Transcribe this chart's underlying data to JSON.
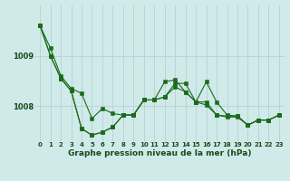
{
  "background_color": "#d0eaea",
  "grid_color": "#b8d4d4",
  "line_color": "#1a6b1a",
  "marker_color": "#1a6b1a",
  "xlabel": "Graphe pression niveau de la mer (hPa)",
  "xlim": [
    -0.5,
    23.5
  ],
  "ylim": [
    1007.3,
    1010.0
  ],
  "yticks": [
    1008.0,
    1009.0
  ],
  "xticks": [
    0,
    1,
    2,
    3,
    4,
    5,
    6,
    7,
    8,
    9,
    10,
    11,
    12,
    13,
    14,
    15,
    16,
    17,
    18,
    19,
    20,
    21,
    22,
    23
  ],
  "series": [
    [
      1009.6,
      1009.15,
      1008.6,
      1008.35,
      1008.25,
      1007.75,
      1007.95,
      1007.85,
      1007.82,
      1007.82,
      1008.12,
      1008.12,
      1008.18,
      1008.45,
      1008.45,
      1008.08,
      1008.02,
      1007.82,
      1007.78,
      1007.78,
      1007.62,
      1007.72,
      1007.72,
      1007.82
    ],
    [
      1009.6,
      1009.0,
      1008.55,
      1008.3,
      1007.55,
      1007.42,
      1007.48,
      1007.58,
      1007.82,
      1007.82,
      1008.12,
      1008.12,
      1008.48,
      1008.52,
      1008.28,
      1008.08,
      1008.48,
      1008.08,
      1007.82,
      1007.8,
      1007.62,
      1007.72,
      1007.72,
      1007.82
    ],
    [
      1009.6,
      1009.0,
      1008.55,
      1008.3,
      1007.55,
      1007.42,
      1007.48,
      1007.58,
      1007.82,
      1007.82,
      1008.12,
      1008.12,
      1008.18,
      1008.38,
      1008.28,
      1008.08,
      1008.08,
      1007.82,
      1007.8,
      1007.8,
      1007.62,
      1007.72,
      1007.72,
      1007.82
    ]
  ],
  "hours": [
    0,
    1,
    2,
    3,
    4,
    5,
    6,
    7,
    8,
    9,
    10,
    11,
    12,
    13,
    14,
    15,
    16,
    17,
    18,
    19,
    20,
    21,
    22,
    23
  ]
}
